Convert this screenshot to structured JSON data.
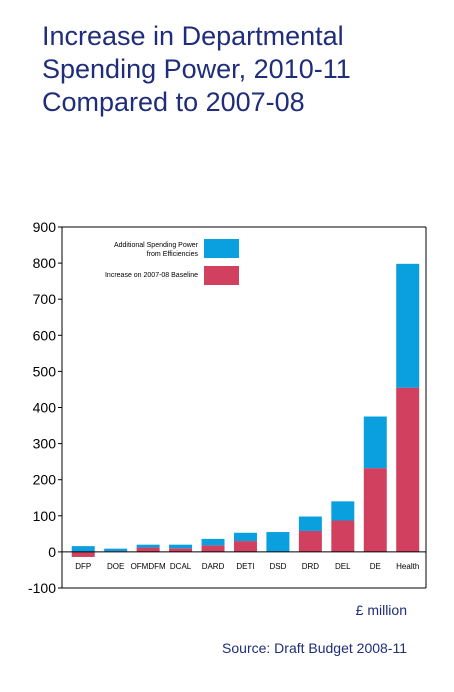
{
  "title_lines": [
    "Increase in Departmental",
    "Spending Power, 2010-11",
    "Compared to 2007-08"
  ],
  "unit_label": "£ million",
  "source": "Source: Draft Budget 2008-11",
  "chart_data": {
    "type": "bar",
    "stacked": true,
    "categories": [
      "DFP",
      "DOE",
      "OFMDFM",
      "DCAL",
      "DARD",
      "DETI",
      "DSD",
      "DRD",
      "DEL",
      "DE",
      "Health"
    ],
    "series": [
      {
        "name": "Increase on 2007-08 Baseline",
        "color": "#d2405f",
        "values": [
          -14,
          2,
          12,
          10,
          18,
          30,
          0,
          58,
          87,
          232,
          455
        ]
      },
      {
        "name": "Additional Spending Power from Efficiencies",
        "color": "#0aa0df",
        "values": [
          16,
          7,
          8,
          10,
          18,
          23,
          55,
          40,
          53,
          143,
          343
        ]
      }
    ],
    "ylim": [
      -100,
      900
    ],
    "yticks": [
      -100,
      0,
      100,
      200,
      300,
      400,
      500,
      600,
      700,
      800,
      900
    ],
    "legend_position": "top-left",
    "grid": false
  }
}
